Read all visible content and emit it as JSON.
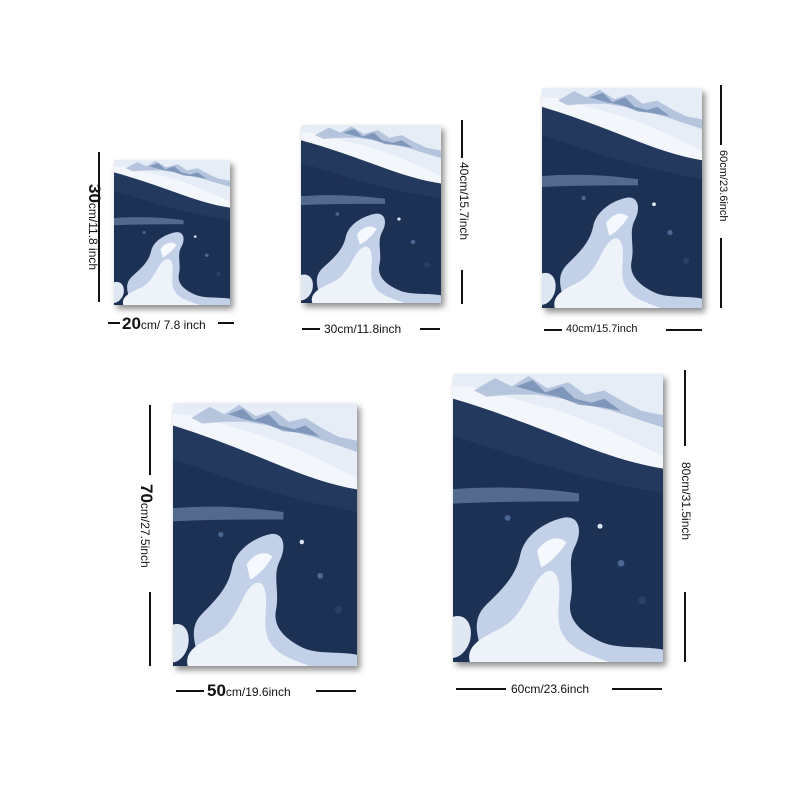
{
  "sizes": [
    {
      "width_num": "20",
      "width_unit": "cm/ 7.8 inch",
      "height_num": "30",
      "height_unit": "cm/11.8 inch"
    },
    {
      "width_text": "30cm/11.8inch",
      "height_text": "40cm/15.7inch"
    },
    {
      "width_text": "40cm/15.7inch",
      "height_text": "60cm/23.6inch"
    },
    {
      "width_num": "50",
      "width_unit": "cm/19.6inch",
      "height_num": "70",
      "height_unit": "cm/27.5inch"
    },
    {
      "width_text": "60cm/23.6inch",
      "height_text": "80cm/31.5inch"
    }
  ],
  "colors": {
    "navy": "#1f3457",
    "mid": "#3e5a86",
    "light": "#c9d6ea",
    "white": "#f4f7fc"
  }
}
